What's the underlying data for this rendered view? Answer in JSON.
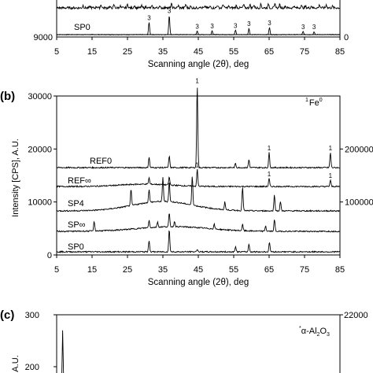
{
  "chart_data": [
    {
      "panel": "(a)",
      "type": "line",
      "xlabel": "Scanning angle (2θ), deg",
      "xlim": [
        5,
        85
      ],
      "x_ticks": [
        5,
        15,
        25,
        35,
        45,
        55,
        65,
        75,
        85
      ],
      "left_ticks": [
        9000
      ],
      "right_ticks": [
        0
      ],
      "series": [
        {
          "name": "SP0",
          "peaks": [
            {
              "x": 31.1,
              "h": 0.6,
              "label": "3"
            },
            {
              "x": 36.8,
              "h": 0.95,
              "label": "3"
            },
            {
              "x": 44.7,
              "h": 0.18,
              "label": "3"
            },
            {
              "x": 48.9,
              "h": 0.2,
              "label": "3"
            },
            {
              "x": 55.5,
              "h": 0.22,
              "label": "3"
            },
            {
              "x": 59.3,
              "h": 0.3,
              "label": "3"
            },
            {
              "x": 65.1,
              "h": 0.35,
              "label": "3"
            },
            {
              "x": 74.6,
              "h": 0.15,
              "label": "3"
            },
            {
              "x": 77.7,
              "h": 0.15,
              "label": "3"
            }
          ]
        }
      ]
    },
    {
      "panel": "(b)",
      "type": "line",
      "xlabel": "Scanning angle (2θ), deg",
      "ylabel": "Intensity [CPS], A.U.",
      "xlim": [
        5,
        85
      ],
      "x_ticks": [
        5,
        15,
        25,
        35,
        45,
        55,
        65,
        75,
        85
      ],
      "left_ylim": [
        0,
        30000
      ],
      "left_ticks": [
        0,
        10000,
        20000,
        30000
      ],
      "right_ticks": [
        100000,
        200000
      ],
      "legend": {
        "sup": "1",
        "text": "Fe",
        "sub": "0"
      },
      "series": [
        {
          "name": "REF0",
          "peaks": [
            {
              "x": 31.1,
              "h": 2000
            },
            {
              "x": 36.8,
              "h": 2200
            },
            {
              "x": 44.7,
              "h": 15500,
              "label": "1"
            },
            {
              "x": 55.5,
              "h": 800
            },
            {
              "x": 59.3,
              "h": 1500
            },
            {
              "x": 65.0,
              "h": 2800,
              "label": "1"
            },
            {
              "x": 82.3,
              "h": 2800,
              "label": "1"
            }
          ]
        },
        {
          "name": "REF∞",
          "peaks": [
            {
              "x": 31.1,
              "h": 1200
            },
            {
              "x": 36.8,
              "h": 1500
            },
            {
              "x": 44.7,
              "h": 3200,
              "label": "1"
            },
            {
              "x": 65.0,
              "h": 1500,
              "label": "1"
            },
            {
              "x": 82.3,
              "h": 1200,
              "label": "1"
            }
          ]
        },
        {
          "name": "SP4",
          "peaks": [
            {
              "x": 26.0,
              "h": 3000
            },
            {
              "x": 31.1,
              "h": 2500
            },
            {
              "x": 35.0,
              "h": 4500
            },
            {
              "x": 36.8,
              "h": 3800
            },
            {
              "x": 43.3,
              "h": 5500
            },
            {
              "x": 52.5,
              "h": 1500
            },
            {
              "x": 57.5,
              "h": 4500
            },
            {
              "x": 66.5,
              "h": 3000
            },
            {
              "x": 68.2,
              "h": 1800
            }
          ]
        },
        {
          "name": "SP∞",
          "peaks": [
            {
              "x": 15.6,
              "h": 1800
            },
            {
              "x": 31.1,
              "h": 1400
            },
            {
              "x": 33.5,
              "h": 1000
            },
            {
              "x": 36.8,
              "h": 2500
            },
            {
              "x": 38.3,
              "h": 1000
            },
            {
              "x": 49.5,
              "h": 900
            },
            {
              "x": 57.5,
              "h": 1200
            },
            {
              "x": 64.0,
              "h": 1000
            },
            {
              "x": 66.5,
              "h": 2200
            }
          ]
        },
        {
          "name": "SP0",
          "peaks": [
            {
              "x": 31.1,
              "h": 2200
            },
            {
              "x": 36.8,
              "h": 4200
            },
            {
              "x": 44.7,
              "h": 500
            },
            {
              "x": 55.5,
              "h": 1000
            },
            {
              "x": 59.3,
              "h": 1500
            },
            {
              "x": 65.1,
              "h": 1800
            }
          ]
        }
      ]
    },
    {
      "panel": "(c)",
      "type": "line",
      "ylabel": "A.U.",
      "left_ticks": [
        300,
        200
      ],
      "right_ticks": [
        22000
      ],
      "legend": {
        "sup": "*",
        "text": "α-Al",
        "sub1": "2",
        "mid": "O",
        "sub2": "3"
      },
      "series": [
        {
          "name": "",
          "peaks": [
            {
              "x": 6.8,
              "h": 270
            }
          ]
        }
      ]
    }
  ]
}
